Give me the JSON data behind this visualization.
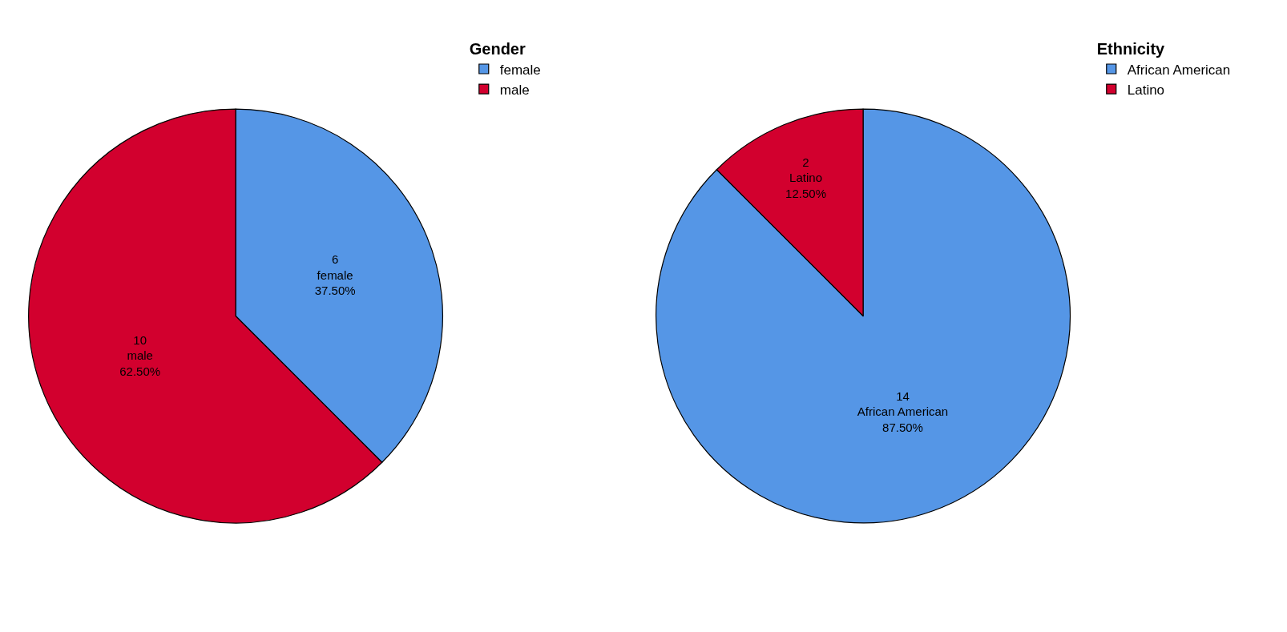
{
  "chart_data": [
    {
      "type": "pie",
      "legend_title": "Gender",
      "categories": [
        "female",
        "male"
      ],
      "values": [
        6,
        10
      ],
      "colors": [
        "#5596e6",
        "#d2002e"
      ],
      "value_labels": [
        "6\nfemale\n37.50%",
        "10\nmale\n62.50%"
      ],
      "legend": "top right"
    },
    {
      "type": "pie",
      "legend_title": "Ethnicity",
      "categories": [
        "African American",
        "Latino"
      ],
      "values": [
        14,
        2
      ],
      "colors": [
        "#5596e6",
        "#d2002e"
      ],
      "value_labels": [
        "14\nAfrican American\n87.50%",
        "2\nLatino\n12.50%"
      ],
      "legend": "top right"
    }
  ]
}
